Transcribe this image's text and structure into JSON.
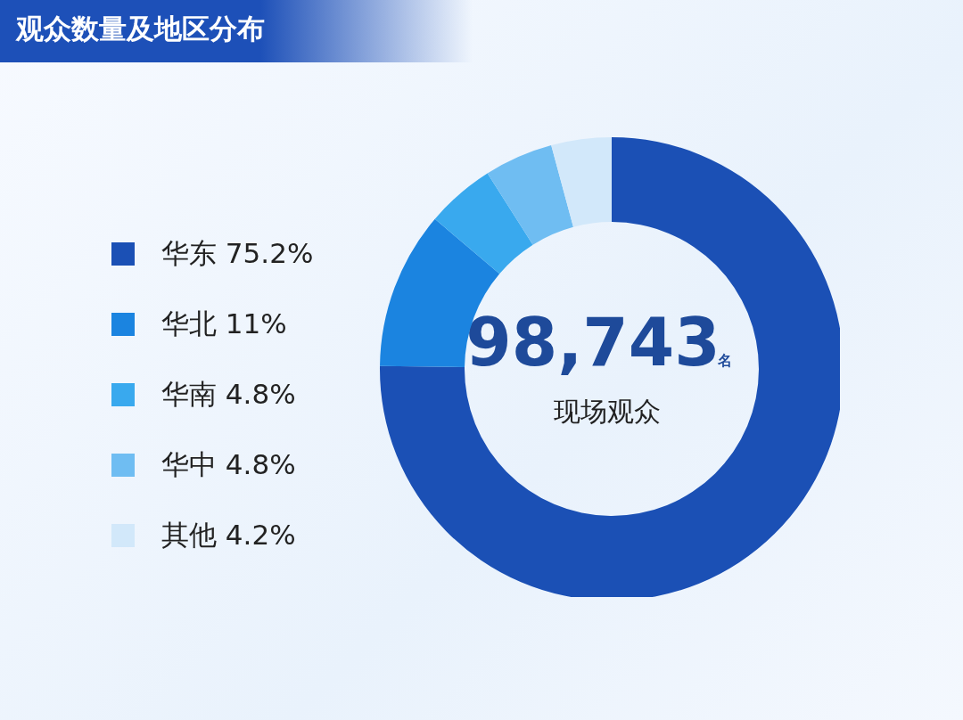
{
  "chart_data": {
    "type": "donut",
    "title": "观众数量及地区分布",
    "categories": [
      "华东",
      "华北",
      "华南",
      "华中",
      "其他"
    ],
    "values": [
      75.2,
      11,
      4.8,
      4.8,
      4.2
    ],
    "value_labels": [
      "75.2%",
      "11%",
      "4.8%",
      "4.8%",
      "4.2%"
    ],
    "colors": [
      "#1b50b5",
      "#1b84e0",
      "#39a9ee",
      "#6fbdf2",
      "#d2e8fa"
    ],
    "legend": "left",
    "annotations": [
      "98,743",
      "名",
      "现场观众"
    ]
  }
}
